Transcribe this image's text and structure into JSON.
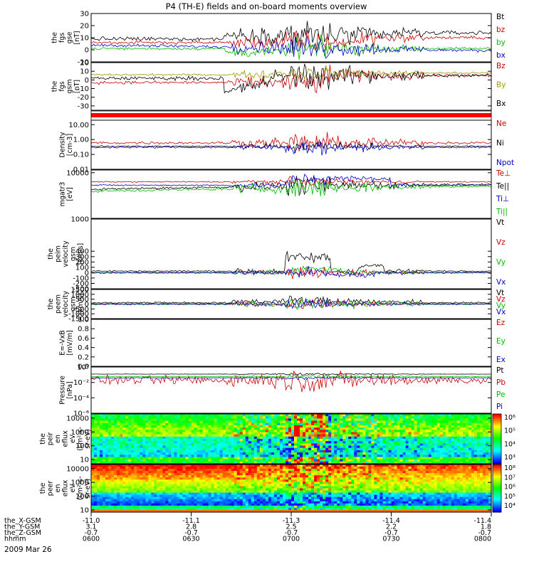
{
  "title": "P4 (TH-E) fields and on-board moments overview",
  "date": "2009 Mar 26",
  "colorbar_ticks": [
    [
      "10⁶",
      "10⁵",
      "10⁴",
      "10³"
    ],
    [
      "10⁸",
      "10⁷",
      "10⁶",
      "10⁵",
      "10⁴"
    ]
  ],
  "chart_data": [
    {
      "type": "line",
      "id": "p1",
      "ylabel": [
        "the",
        "fgs",
        "gse",
        "[nT]"
      ],
      "ylim": [
        -10,
        30
      ],
      "yticks": [
        "30",
        "20",
        "10",
        "0",
        "-10"
      ],
      "tickvals": [
        30,
        20,
        10,
        0,
        -10
      ],
      "log": false,
      "legend": [
        {
          "name": "Bt",
          "color": "#000000"
        },
        {
          "name": "bz",
          "color": "#cc0000"
        },
        {
          "name": "by",
          "color": "#00bb00"
        },
        {
          "name": "bx",
          "color": "#0000cc"
        }
      ]
    },
    {
      "type": "line",
      "id": "p2",
      "ylabel": [
        "the",
        "fgs",
        "gsm",
        "[nT]"
      ],
      "ylim": [
        -35,
        20
      ],
      "yticks": [
        "20",
        "10",
        "0",
        "-10",
        "-20",
        "-30"
      ],
      "tickvals": [
        20,
        10,
        0,
        -10,
        -20,
        -30
      ],
      "log": false,
      "legend": [
        {
          "name": "Bz",
          "color": "#cc0000"
        },
        {
          "name": "By",
          "color": "#999900"
        },
        {
          "name": "Bx",
          "color": "#000000"
        }
      ]
    },
    {
      "type": "line",
      "id": "p3",
      "ylabel": [
        "Density",
        "[cm-3]"
      ],
      "ylim": [
        0.01,
        20
      ],
      "yticks": [
        "10.00",
        "1.00",
        "0.10",
        "0.01"
      ],
      "tickvals": [
        10,
        1,
        0.1,
        0.01
      ],
      "log": true,
      "legend": [
        {
          "name": "Ne",
          "color": "#cc0000"
        },
        {
          "name": "Ni",
          "color": "#000000"
        },
        {
          "name": "Npot",
          "color": "#0000cc"
        }
      ]
    },
    {
      "type": "line",
      "id": "p4",
      "ylabel": [
        "mgatr3",
        "[eV]"
      ],
      "ylim": [
        10,
        15000
      ],
      "yticks": [
        "10000"
      ],
      "tickvals": [
        10000
      ],
      "log": true,
      "legend": [
        {
          "name": "Te⊥",
          "color": "#cc0000"
        },
        {
          "name": "Te||",
          "color": "#000000"
        },
        {
          "name": "Ti⊥",
          "color": "#0000cc"
        },
        {
          "name": "Ti||",
          "color": "#00bb00"
        }
      ]
    },
    {
      "type": "line",
      "id": "p5",
      "ylabel": [
        "the",
        "peim",
        "velocity",
        "gsm",
        "[km/s]"
      ],
      "ylim": [
        -300,
        1000
      ],
      "yticks": [
        "1000",
        "400",
        "300",
        "200",
        "100",
        "0",
        "-100",
        "-200",
        "-300"
      ],
      "tickvals": [
        1000,
        400,
        300,
        200,
        100,
        0,
        -100,
        -200,
        -300
      ],
      "log": false,
      "legend": [
        {
          "name": "Vt",
          "color": "#000000"
        },
        {
          "name": "Vz",
          "color": "#cc0000"
        },
        {
          "name": "Vy",
          "color": "#00bb00"
        },
        {
          "name": "Vx",
          "color": "#0000cc"
        }
      ]
    },
    {
      "type": "line",
      "id": "p6",
      "ylabel": [
        "the",
        "peem",
        "velocity",
        "gsm",
        "[km/s]"
      ],
      "ylim": [
        -1500,
        1500
      ],
      "yticks": [
        "1500",
        "1000",
        "500",
        "0",
        "-500",
        "-1000",
        "-1500"
      ],
      "tickvals": [
        1500,
        1000,
        500,
        0,
        -500,
        -1000,
        -1500
      ],
      "log": false,
      "legend": [
        {
          "name": "Vt",
          "color": "#000000"
        },
        {
          "name": "Vz",
          "color": "#cc0000"
        },
        {
          "name": "Vy",
          "color": "#00bb00"
        },
        {
          "name": "Vx",
          "color": "#0000cc"
        }
      ]
    },
    {
      "type": "line",
      "id": "p7",
      "ylabel": [
        "E=-VxB",
        "[mV/m]"
      ],
      "ylim": [
        0,
        1
      ],
      "yticks": [
        "1.0",
        "0.8",
        "0.6",
        "0.4",
        "0.2",
        "0.0"
      ],
      "tickvals": [
        1.0,
        0.8,
        0.6,
        0.4,
        0.2,
        0.0
      ],
      "log": false,
      "legend": [
        {
          "name": "Ez",
          "color": "#cc0000"
        },
        {
          "name": "Ey",
          "color": "#00bb00"
        },
        {
          "name": "Ex",
          "color": "#0000cc"
        }
      ]
    },
    {
      "type": "line",
      "id": "p8",
      "ylabel": [
        "Pressure",
        "[nPa]"
      ],
      "ylim": [
        1e-06,
        1
      ],
      "yticks": [
        "10⁰",
        "10⁻²",
        "10⁻⁴",
        "10⁻⁶"
      ],
      "tickvals": [
        1,
        0.01,
        0.0001,
        1e-06
      ],
      "log": true,
      "legend": [
        {
          "name": "Pt",
          "color": "#000000"
        },
        {
          "name": "Pb",
          "color": "#cc0000"
        },
        {
          "name": "Pe",
          "color": "#00bb00"
        },
        {
          "name": "Pi",
          "color": "#0000cc"
        }
      ]
    },
    {
      "type": "heatmap",
      "id": "p9",
      "ylabel": [
        "the",
        "peir",
        "en",
        "eflux",
        "eV",
        "(cm²-s-",
        "sr-eV)"
      ],
      "ylim": [
        5,
        20000
      ],
      "yticks": [
        "10000",
        "1000",
        "100",
        "10"
      ],
      "tickvals": [
        10000,
        1000,
        100,
        10
      ],
      "log": true
    },
    {
      "type": "heatmap",
      "id": "p10",
      "ylabel": [
        "the",
        "peer",
        "en",
        "eflux",
        "eV",
        "(cm²-s-",
        "sr-eV)"
      ],
      "ylim": [
        7,
        20000
      ],
      "yticks": [
        "10000",
        "1000",
        "100",
        "10"
      ],
      "tickvals": [
        10000,
        1000,
        100,
        10
      ],
      "log": true
    }
  ],
  "xaxis": {
    "rows": [
      {
        "label": "the_X-GSM",
        "values": [
          "-11.0",
          "-11.1",
          "-11.3",
          "-11.4",
          "-11.4"
        ]
      },
      {
        "label": "the_Y-GSM",
        "values": [
          "3.1",
          "2.8",
          "2.5",
          "2.2",
          "1.8"
        ]
      },
      {
        "label": "the_Z-GSM",
        "values": [
          "-0.7",
          "-0.7",
          "-0.7",
          "-0.7",
          "-0.7"
        ]
      },
      {
        "label": "hhmm",
        "values": [
          "0600",
          "0630",
          "0700",
          "0730",
          "0800"
        ]
      }
    ],
    "time_range_minutes": [
      0,
      120
    ],
    "tick_minutes": [
      0,
      30,
      60,
      90,
      120
    ]
  }
}
